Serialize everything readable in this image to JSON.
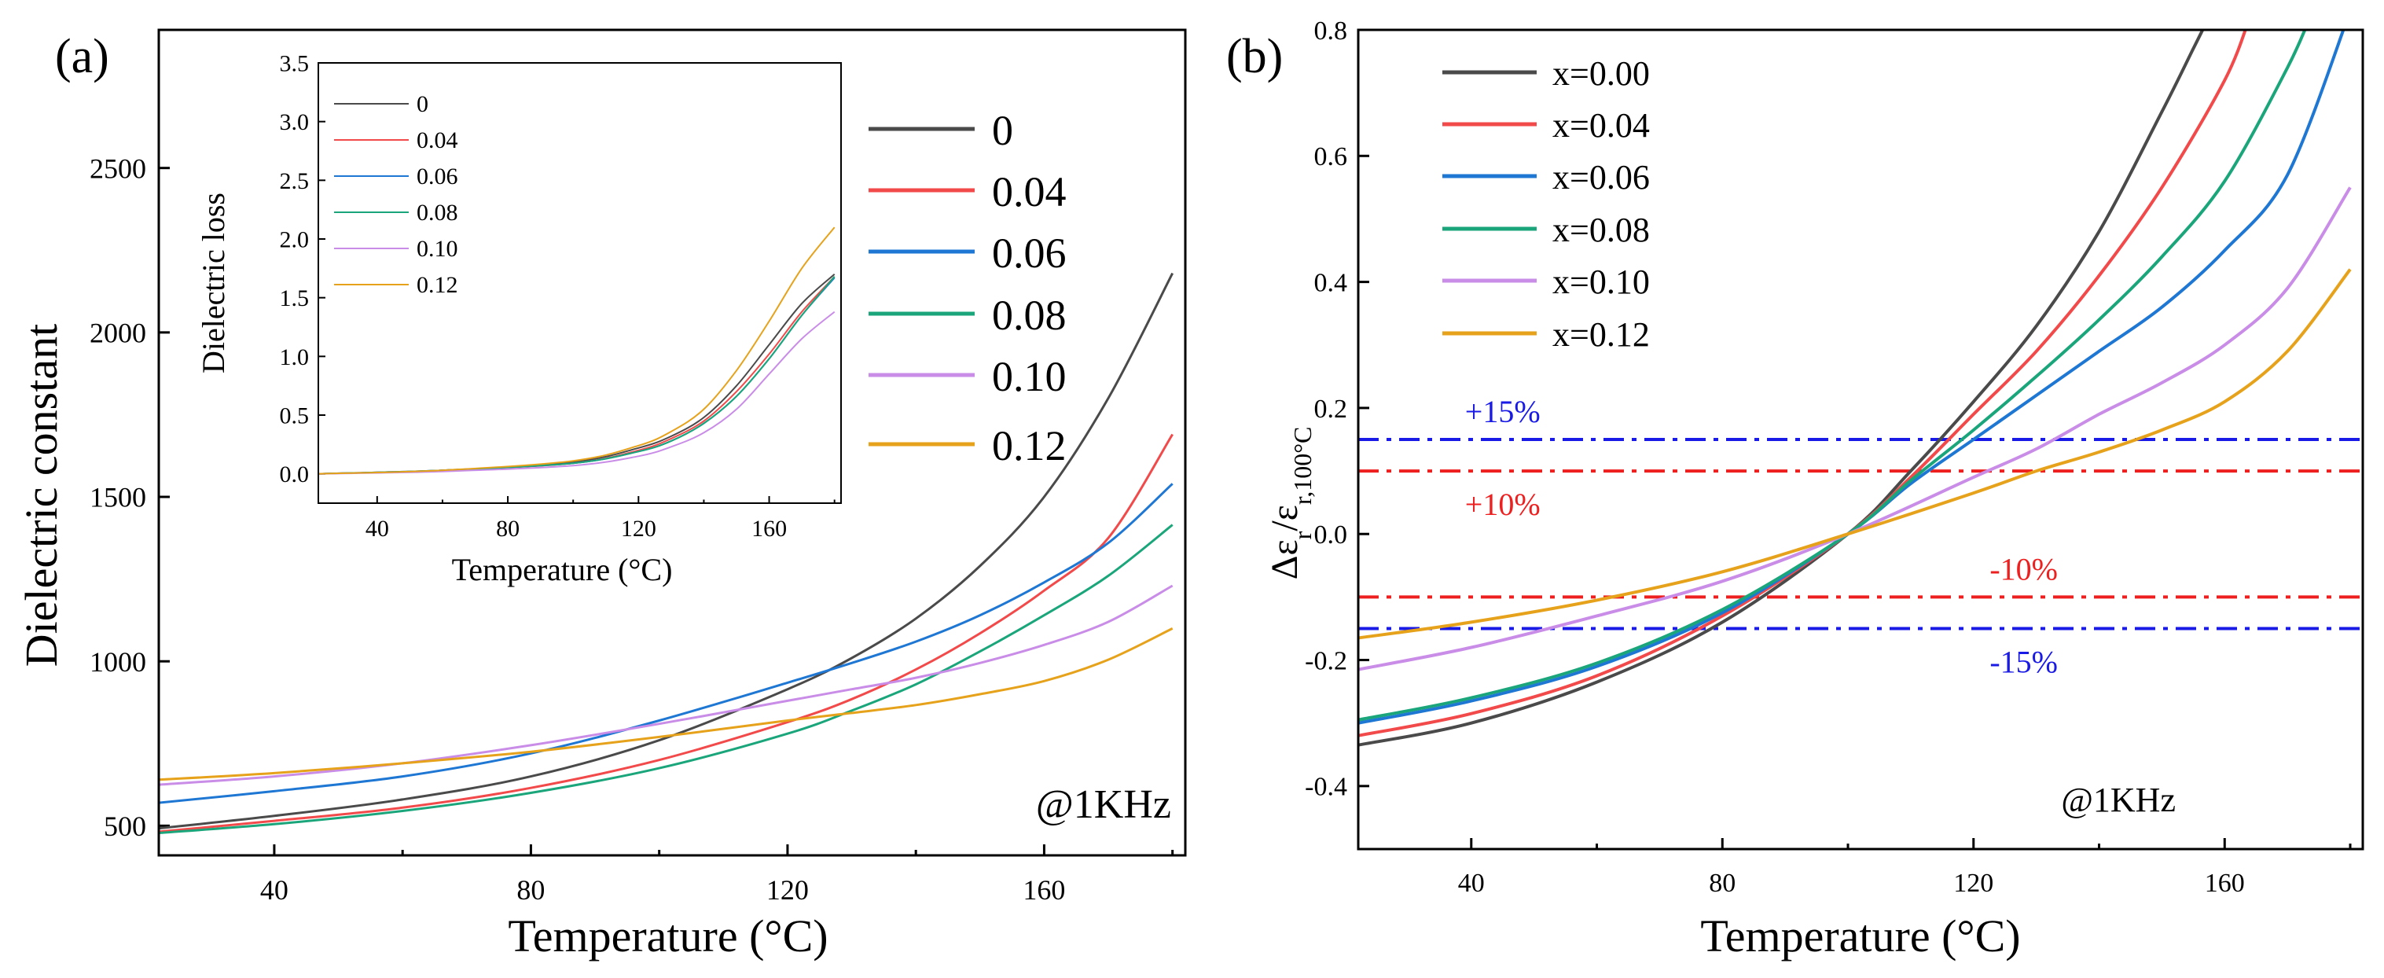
{
  "colors": {
    "s0": "#4a4a4a",
    "s1": "#f24a4a",
    "s2": "#1f77d4",
    "s3": "#1aa67a",
    "s4": "#c98de8",
    "s5": "#e6a21a",
    "blue_ref": "#1a1ae6",
    "red_ref": "#ee1f1f"
  },
  "chart_data": [
    {
      "id": "a",
      "type": "line",
      "panel_label": "(a)",
      "xlabel": "Temperature (°C)",
      "ylabel": "Dielectric constant",
      "xlim": [
        22,
        182
      ],
      "ylim": [
        410,
        2920
      ],
      "xticks": [
        40,
        80,
        120,
        160
      ],
      "xtick_labels": [
        "40",
        "80",
        "120",
        "160"
      ],
      "yticks": [
        500,
        1000,
        1500,
        2000,
        2500
      ],
      "ytick_labels": [
        "500",
        "1000",
        "1500",
        "2000",
        "2500"
      ],
      "annotation": "@1KHz",
      "legend_position": "right",
      "series": [
        {
          "name": "0",
          "color_key": "s0",
          "x": [
            22,
            40,
            60,
            80,
            100,
            120,
            130,
            140,
            150,
            160,
            170,
            180
          ],
          "y": [
            492,
            530,
            580,
            650,
            760,
            915,
            1010,
            1130,
            1290,
            1500,
            1800,
            2180
          ]
        },
        {
          "name": "0.04",
          "color_key": "s1",
          "x": [
            22,
            40,
            60,
            80,
            100,
            120,
            130,
            140,
            150,
            160,
            170,
            180
          ],
          "y": [
            482,
            515,
            555,
            615,
            700,
            815,
            885,
            975,
            1085,
            1215,
            1375,
            1690
          ]
        },
        {
          "name": "0.06",
          "color_key": "s2",
          "x": [
            22,
            40,
            60,
            80,
            100,
            120,
            130,
            140,
            150,
            160,
            170,
            180
          ],
          "y": [
            570,
            605,
            650,
            720,
            820,
            935,
            995,
            1060,
            1140,
            1240,
            1360,
            1540
          ]
        },
        {
          "name": "0.08",
          "color_key": "s3",
          "x": [
            22,
            40,
            60,
            80,
            100,
            120,
            130,
            140,
            150,
            160,
            170,
            180
          ],
          "y": [
            478,
            505,
            545,
            600,
            675,
            780,
            850,
            930,
            1030,
            1140,
            1260,
            1415
          ]
        },
        {
          "name": "0.10",
          "color_key": "s4",
          "x": [
            22,
            40,
            60,
            80,
            100,
            120,
            130,
            140,
            150,
            160,
            170,
            180
          ],
          "y": [
            625,
            650,
            690,
            745,
            810,
            880,
            915,
            950,
            995,
            1050,
            1120,
            1230
          ]
        },
        {
          "name": "0.12",
          "color_key": "s5",
          "x": [
            22,
            40,
            60,
            80,
            100,
            120,
            130,
            140,
            150,
            160,
            170,
            180
          ],
          "y": [
            640,
            660,
            690,
            725,
            770,
            820,
            843,
            867,
            900,
            940,
            1005,
            1100
          ]
        }
      ]
    },
    {
      "id": "a-inset",
      "type": "line",
      "xlabel": "Temperature (°C)",
      "ylabel": "Dielectric loss",
      "xlim": [
        22,
        182
      ],
      "ylim": [
        -0.25,
        3.5
      ],
      "xticks": [
        40,
        80,
        120,
        160
      ],
      "xtick_labels": [
        "40",
        "80",
        "120",
        "160"
      ],
      "yticks": [
        0.0,
        0.5,
        1.0,
        1.5,
        2.0,
        2.5,
        3.0,
        3.5
      ],
      "ytick_labels": [
        "0.0",
        "0.5",
        "1.0",
        "1.5",
        "2.0",
        "2.5",
        "3.0",
        "3.5"
      ],
      "legend_position": "top-left",
      "series": [
        {
          "name": "0",
          "color_key": "s0",
          "x": [
            22,
            60,
            100,
            120,
            130,
            140,
            150,
            160,
            170,
            180
          ],
          "y": [
            0.0,
            0.03,
            0.1,
            0.22,
            0.32,
            0.48,
            0.75,
            1.1,
            1.45,
            1.7
          ]
        },
        {
          "name": "0.04",
          "color_key": "s1",
          "x": [
            22,
            60,
            100,
            120,
            130,
            140,
            150,
            160,
            170,
            180
          ],
          "y": [
            0.0,
            0.03,
            0.09,
            0.2,
            0.3,
            0.45,
            0.7,
            1.02,
            1.38,
            1.68
          ]
        },
        {
          "name": "0.06",
          "color_key": "s2",
          "x": [
            22,
            60,
            100,
            120,
            130,
            140,
            150,
            160,
            170,
            180
          ],
          "y": [
            0.0,
            0.03,
            0.09,
            0.19,
            0.28,
            0.43,
            0.66,
            0.98,
            1.35,
            1.67
          ]
        },
        {
          "name": "0.08",
          "color_key": "s3",
          "x": [
            22,
            60,
            100,
            120,
            130,
            140,
            150,
            160,
            170,
            180
          ],
          "y": [
            0.0,
            0.03,
            0.09,
            0.19,
            0.28,
            0.43,
            0.66,
            0.98,
            1.35,
            1.68
          ]
        },
        {
          "name": "0.10",
          "color_key": "s4",
          "x": [
            22,
            60,
            100,
            120,
            130,
            140,
            150,
            160,
            170,
            180
          ],
          "y": [
            0.0,
            0.02,
            0.07,
            0.15,
            0.23,
            0.35,
            0.55,
            0.85,
            1.15,
            1.38
          ]
        },
        {
          "name": "0.12",
          "color_key": "s5",
          "x": [
            22,
            60,
            100,
            120,
            130,
            140,
            150,
            160,
            170,
            180
          ],
          "y": [
            0.0,
            0.03,
            0.11,
            0.24,
            0.36,
            0.55,
            0.88,
            1.3,
            1.75,
            2.1
          ]
        }
      ]
    },
    {
      "id": "b",
      "type": "line",
      "panel_label": "(b)",
      "xlabel": "Temperature (°C)",
      "ylabel_main": "Δε",
      "ylabel_sub1": "r",
      "ylabel_mid": "/ε",
      "ylabel_sub2": "r,100°C",
      "xlim": [
        22,
        182
      ],
      "ylim": [
        -0.5,
        0.8
      ],
      "xticks": [
        40,
        80,
        120,
        160
      ],
      "xtick_labels": [
        "40",
        "80",
        "120",
        "160"
      ],
      "yticks": [
        -0.4,
        -0.2,
        0.0,
        0.2,
        0.4,
        0.6,
        0.8
      ],
      "ytick_labels": [
        "-0.4",
        "-0.2",
        "0.0",
        "0.2",
        "0.4",
        "0.6",
        "0.8"
      ],
      "annotation": "@1KHz",
      "legend_position": "top-left",
      "reference_lines": [
        {
          "y": 0.15,
          "label": "+15%",
          "color_key": "blue_ref",
          "label_x": 45,
          "label_side": "above"
        },
        {
          "y": 0.1,
          "label": "+10%",
          "color_key": "red_ref",
          "label_x": 45,
          "label_side": "below"
        },
        {
          "y": -0.1,
          "label": "-10%",
          "color_key": "red_ref",
          "label_x": 128,
          "label_side": "above"
        },
        {
          "y": -0.15,
          "label": "-15%",
          "color_key": "blue_ref",
          "label_x": 128,
          "label_side": "below"
        }
      ],
      "series": [
        {
          "name": "x=0.00",
          "color_key": "s0",
          "x": [
            22,
            40,
            60,
            80,
            100,
            110,
            120,
            130,
            140,
            150,
            155,
            158
          ],
          "y": [
            -0.335,
            -0.3,
            -0.235,
            -0.14,
            0.0,
            0.1,
            0.21,
            0.33,
            0.48,
            0.67,
            0.77,
            0.83
          ]
        },
        {
          "name": "x=0.04",
          "color_key": "s1",
          "x": [
            22,
            40,
            60,
            80,
            100,
            110,
            120,
            130,
            140,
            150,
            160,
            164
          ],
          "y": [
            -0.32,
            -0.285,
            -0.225,
            -0.13,
            0.0,
            0.09,
            0.19,
            0.29,
            0.41,
            0.55,
            0.72,
            0.82
          ]
        },
        {
          "name": "x=0.06",
          "color_key": "s2",
          "x": [
            22,
            40,
            60,
            80,
            100,
            110,
            120,
            130,
            140,
            150,
            160,
            170,
            180
          ],
          "y": [
            -0.3,
            -0.265,
            -0.21,
            -0.125,
            0.0,
            0.08,
            0.15,
            0.22,
            0.29,
            0.36,
            0.45,
            0.57,
            0.83
          ]
        },
        {
          "name": "x=0.08",
          "color_key": "s3",
          "x": [
            22,
            40,
            60,
            80,
            100,
            110,
            120,
            130,
            140,
            150,
            160,
            170,
            174
          ],
          "y": [
            -0.295,
            -0.26,
            -0.205,
            -0.12,
            0.0,
            0.085,
            0.165,
            0.25,
            0.34,
            0.44,
            0.56,
            0.74,
            0.83
          ]
        },
        {
          "name": "x=0.10",
          "color_key": "s4",
          "x": [
            22,
            40,
            60,
            80,
            100,
            120,
            130,
            140,
            150,
            160,
            170,
            180
          ],
          "y": [
            -0.215,
            -0.18,
            -0.13,
            -0.075,
            0.0,
            0.09,
            0.135,
            0.19,
            0.24,
            0.3,
            0.39,
            0.55
          ]
        },
        {
          "name": "x=0.12",
          "color_key": "s5",
          "x": [
            22,
            40,
            60,
            80,
            100,
            120,
            130,
            140,
            150,
            160,
            170,
            180
          ],
          "y": [
            -0.165,
            -0.14,
            -0.105,
            -0.06,
            0.0,
            0.065,
            0.1,
            0.13,
            0.165,
            0.21,
            0.29,
            0.42
          ]
        }
      ]
    }
  ]
}
